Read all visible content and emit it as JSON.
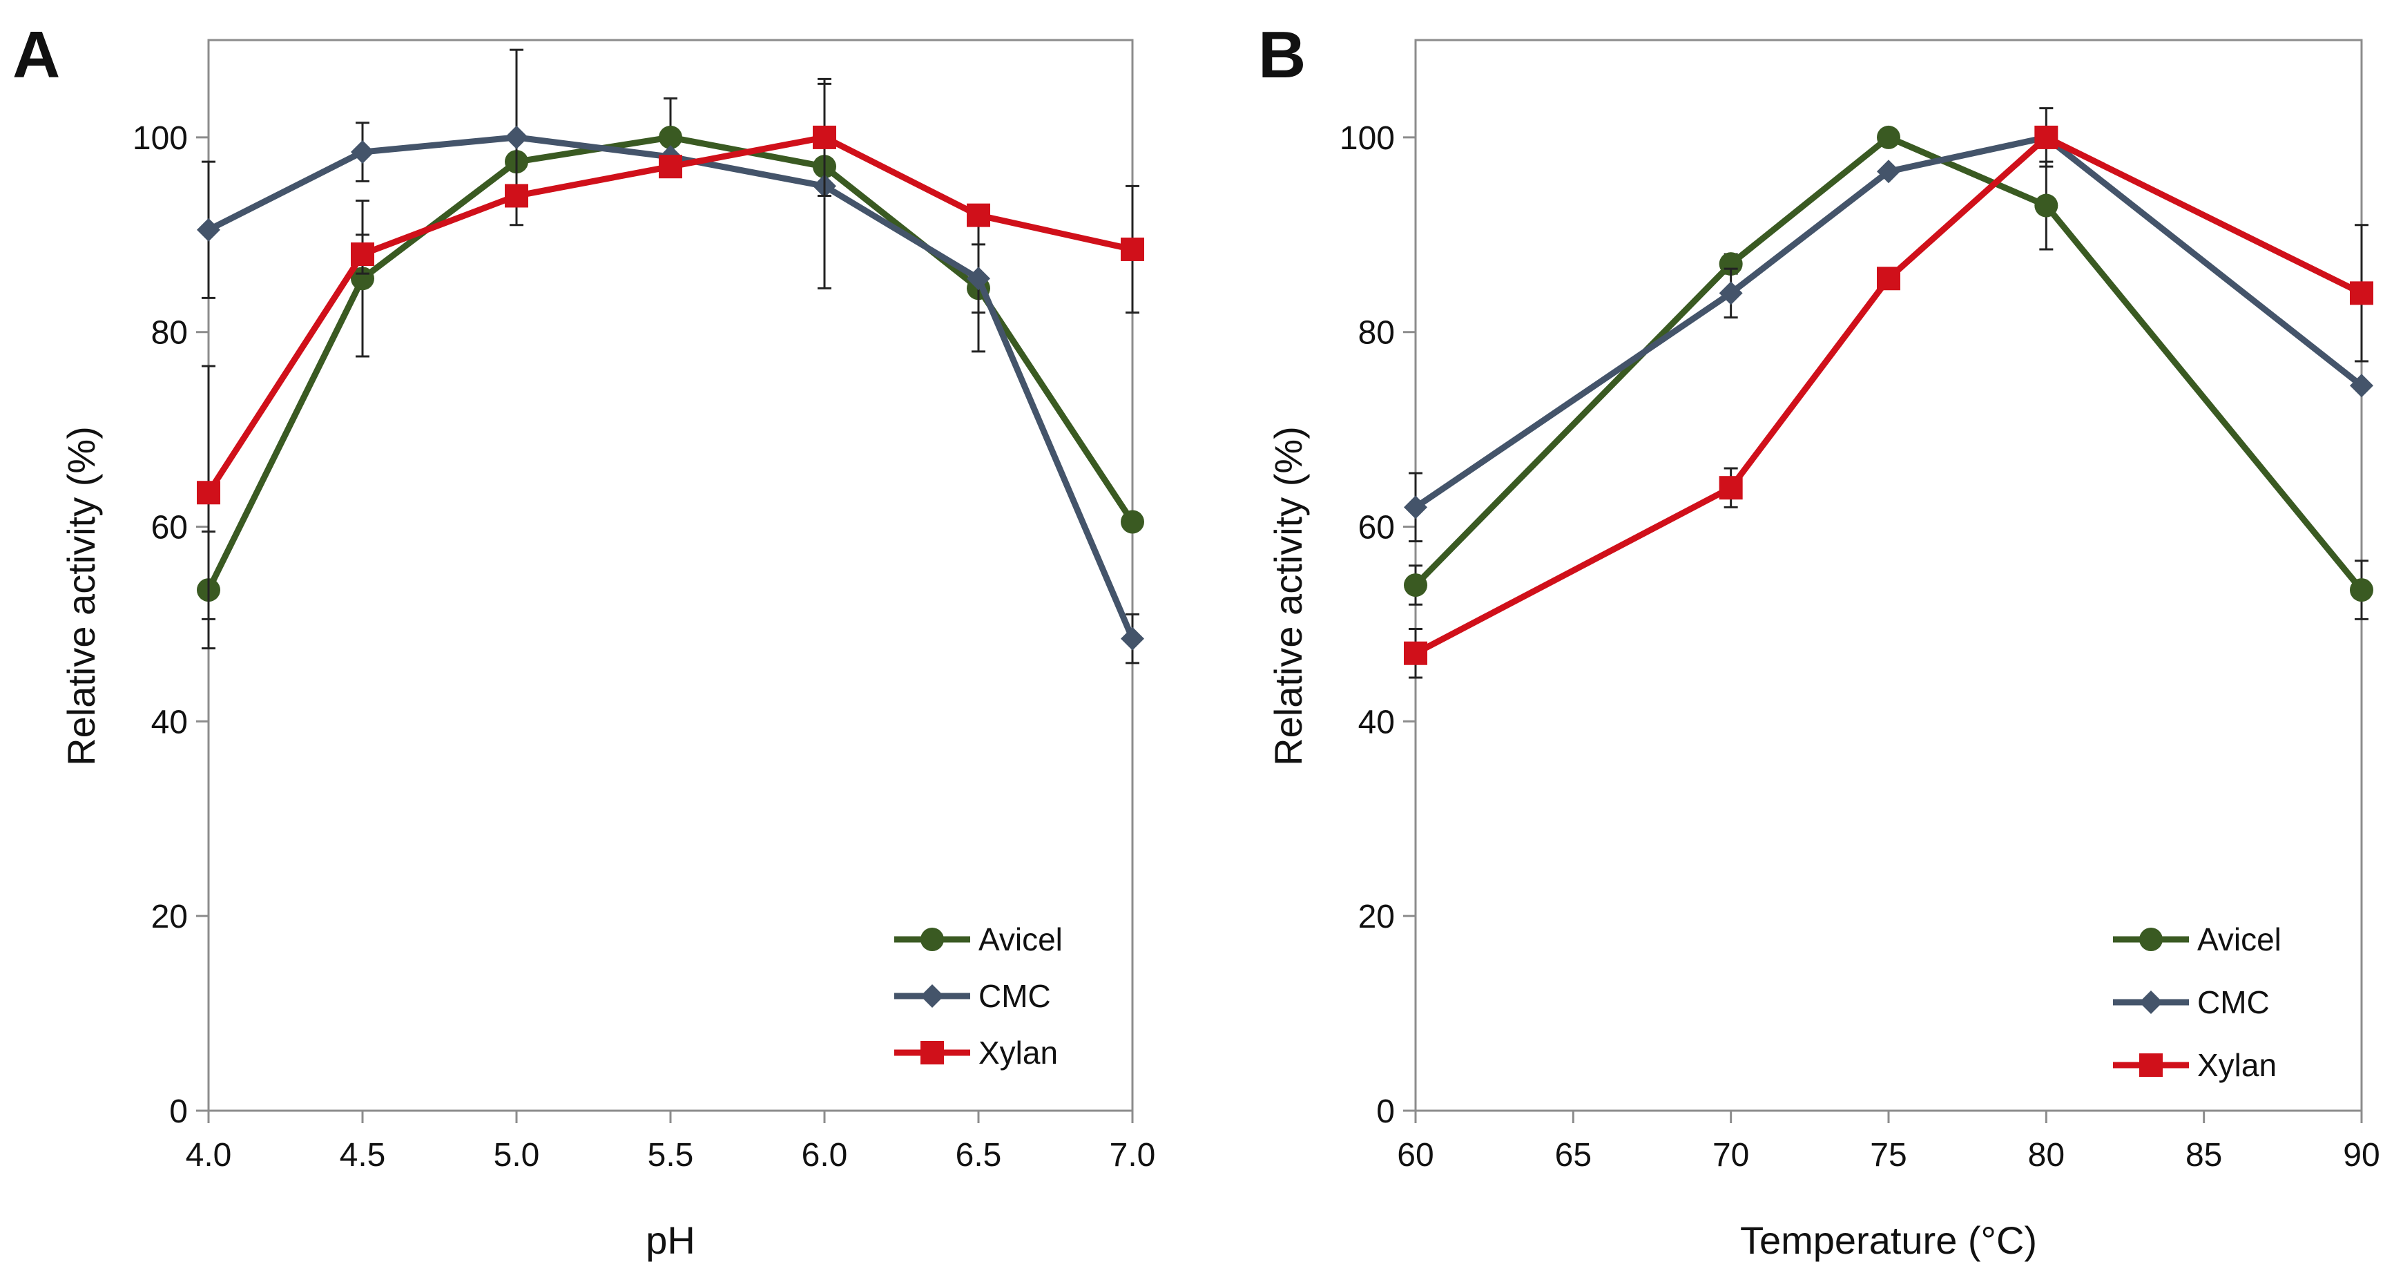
{
  "chart_data": [
    {
      "panel": "A",
      "type": "line",
      "title": "",
      "xlabel": "pH",
      "ylabel": "Relative activity (%)",
      "x": [
        4.0,
        4.5,
        5.0,
        5.5,
        6.0,
        6.5,
        7.0
      ],
      "x_tick_labels": [
        "4.0",
        "4.5",
        "5.0",
        "5.5",
        "6.0",
        "6.5",
        "7.0"
      ],
      "xlim": [
        4.0,
        7.0
      ],
      "ylim": [
        0,
        110
      ],
      "y_ticks": [
        0,
        20,
        40,
        60,
        80,
        100
      ],
      "y_tick_labels": [
        "0",
        "20",
        "40",
        "60",
        "80",
        "100"
      ],
      "grid": false,
      "legend_position": "bottom-right",
      "series": [
        {
          "name": "Avicel",
          "marker": "circle",
          "color": "#3a5a22",
          "values": [
            53.5,
            85.5,
            97.5,
            100,
            97,
            84.5,
            60.5
          ],
          "errors": [
            6,
            8,
            0,
            4,
            0,
            6.5,
            0
          ]
        },
        {
          "name": "CMC",
          "marker": "diamond",
          "color": "#44546a",
          "values": [
            90.5,
            98.5,
            100,
            98,
            95,
            85.5,
            48.5
          ],
          "errors": [
            7,
            3,
            9,
            0,
            10.5,
            3.5,
            2.5
          ]
        },
        {
          "name": "Xylan",
          "marker": "square",
          "color": "#d0101a",
          "values": [
            63.5,
            88,
            94,
            97,
            100,
            92,
            88.5
          ],
          "errors": [
            13,
            2,
            0,
            0,
            6,
            0,
            6.5
          ]
        }
      ]
    },
    {
      "panel": "B",
      "type": "line",
      "title": "",
      "xlabel": "Temperature  (°C)",
      "ylabel": "Relative activity (%)",
      "x": [
        60,
        70,
        75,
        80,
        90
      ],
      "x_ticks": [
        60,
        65,
        70,
        75,
        80,
        85,
        90
      ],
      "x_tick_labels": [
        "60",
        "65",
        "70",
        "75",
        "80",
        "85",
        "90"
      ],
      "xlim": [
        60,
        90
      ],
      "ylim": [
        0,
        110
      ],
      "y_ticks": [
        0,
        20,
        40,
        60,
        80,
        100
      ],
      "y_tick_labels": [
        "0",
        "20",
        "40",
        "60",
        "80",
        "100"
      ],
      "grid": false,
      "legend_position": "bottom-right",
      "series": [
        {
          "name": "Avicel",
          "marker": "circle",
          "color": "#3a5a22",
          "values": [
            54,
            87,
            100,
            93,
            53.5
          ],
          "errors": [
            2,
            1,
            0,
            4.5,
            3
          ]
        },
        {
          "name": "CMC",
          "marker": "diamond",
          "color": "#44546a",
          "values": [
            62,
            84,
            96.5,
            100,
            74.5
          ],
          "errors": [
            3.5,
            2.5,
            0,
            3,
            0
          ]
        },
        {
          "name": "Xylan",
          "marker": "square",
          "color": "#d0101a",
          "values": [
            47,
            64,
            85.5,
            100,
            84
          ],
          "errors": [
            2.5,
            2,
            0,
            0,
            7
          ]
        }
      ]
    }
  ]
}
